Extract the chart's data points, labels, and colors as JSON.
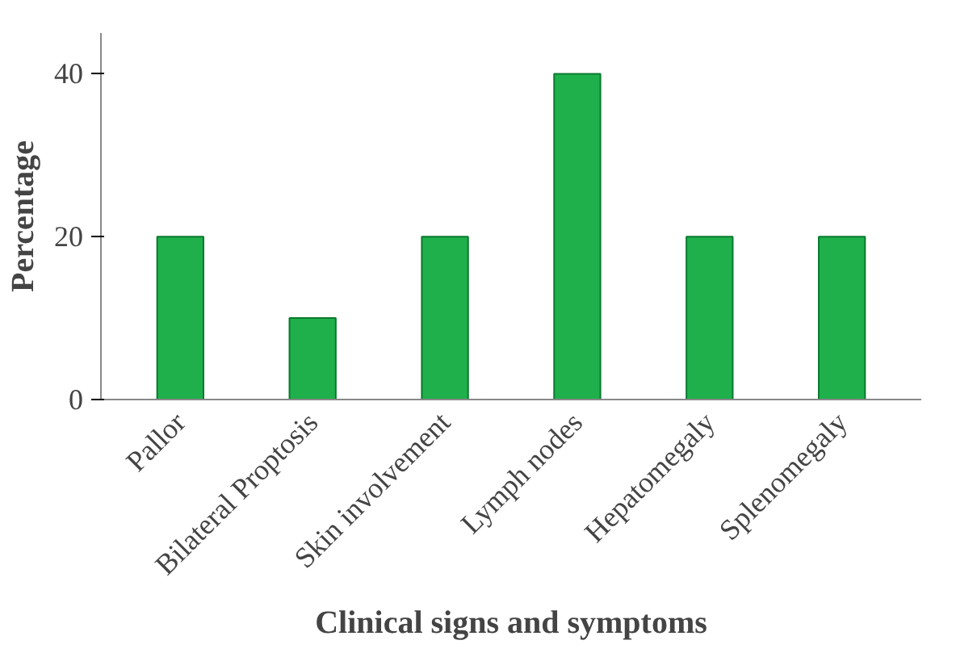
{
  "chart_data": {
    "type": "bar",
    "xlabel": "Clinical signs and symptoms",
    "ylabel": "Percentage",
    "categories": [
      "Pallor",
      "Bilateral Proptosis",
      "Skin involvement",
      "Lymph nodes",
      "Hepatomegaly",
      "Splenomegaly"
    ],
    "values": [
      20,
      10,
      20,
      40,
      20,
      20
    ],
    "color": "#1fb04c",
    "ylim": [
      0,
      45
    ],
    "yticks": [
      0,
      20,
      40
    ],
    "grid": false
  }
}
